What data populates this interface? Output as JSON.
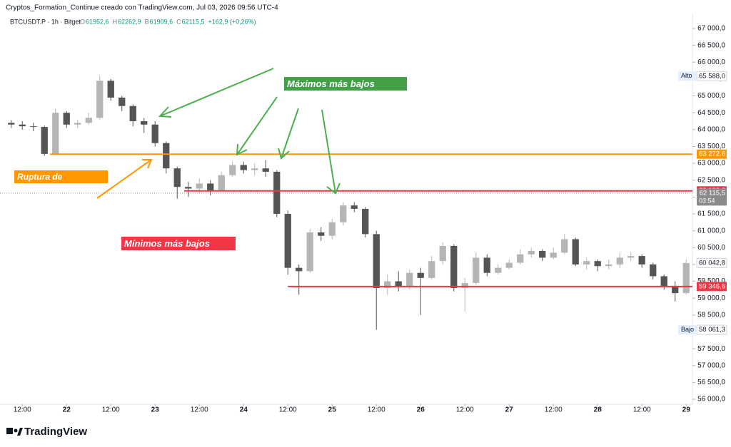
{
  "chart_data": {
    "type": "candlestick",
    "title": "Cryptos_Formation_Continue creado con TradingView.com, Jul 03, 2026 09:56 UTC-4",
    "symbol": "BTCUSDT.P · 1h · Bitget",
    "ohlc_legend": [
      {
        "key": "O",
        "value": "61952,6"
      },
      {
        "key": "H",
        "value": "62262,9"
      },
      {
        "key": "B",
        "value": "61909,6"
      },
      {
        "key": "C",
        "value": "62115,5"
      }
    ],
    "change": "+162,9 (+0,26%)",
    "brand": "TradingView",
    "x": [
      9,
      12,
      15,
      18,
      21,
      24,
      27,
      30,
      33,
      36,
      39,
      42,
      45,
      48,
      51,
      54,
      57,
      60,
      63,
      66,
      69,
      72,
      75,
      78,
      81,
      84,
      87,
      90,
      93,
      96,
      99,
      102,
      105,
      108,
      111,
      114,
      117,
      120,
      123,
      126,
      129,
      132,
      135,
      138,
      141,
      144,
      147,
      150,
      153,
      156,
      159,
      162,
      165,
      168,
      171,
      174,
      177,
      180,
      183,
      186,
      189,
      192
    ],
    "open": [
      64200,
      64150,
      64100,
      64080,
      63280,
      64500,
      64150,
      64200,
      64350,
      65450,
      64950,
      64700,
      64250,
      64150,
      63600,
      62850,
      62300,
      62250,
      62400,
      62200,
      62650,
      62950,
      62800,
      62850,
      62750,
      61500,
      59900,
      59800,
      60950,
      60850,
      61250,
      61750,
      61650,
      60900,
      59300,
      59500,
      59350,
      59750,
      59600,
      60100,
      60550,
      59300,
      59450,
      60200,
      59750,
      59900,
      60050,
      60300,
      60400,
      60200,
      60350,
      60750,
      60000,
      60100,
      59950,
      60000,
      60200,
      60250,
      60000,
      59650,
      59350,
      59150
    ],
    "high": [
      64280,
      64250,
      64200,
      64120,
      64620,
      64550,
      64300,
      64500,
      65588,
      65500,
      65000,
      64750,
      64350,
      64250,
      63650,
      62900,
      62450,
      62550,
      62500,
      62750,
      63050,
      63050,
      63000,
      63100,
      62800,
      61600,
      60000,
      61050,
      61100,
      61350,
      61850,
      61850,
      61700,
      61000,
      59700,
      59800,
      59850,
      59900,
      60250,
      60650,
      60600,
      59600,
      60350,
      60300,
      60000,
      60150,
      60450,
      60500,
      60450,
      60500,
      60900,
      60800,
      60200,
      60150,
      60150,
      60350,
      60350,
      60300,
      60050,
      59700,
      59500,
      60150
    ],
    "low": [
      64050,
      64000,
      63950,
      63220,
      63250,
      64050,
      64050,
      64150,
      64300,
      64850,
      64550,
      64100,
      63900,
      63500,
      62700,
      61950,
      62000,
      62100,
      62050,
      62150,
      62600,
      62700,
      62650,
      62600,
      61400,
      59700,
      59100,
      59750,
      60700,
      60750,
      61150,
      61550,
      60800,
      58061.3,
      59100,
      59200,
      59250,
      58500,
      59550,
      60000,
      59200,
      58600,
      59400,
      59650,
      59700,
      59850,
      60000,
      60200,
      60100,
      60150,
      60300,
      59950,
      59850,
      59800,
      59850,
      59900,
      60100,
      59900,
      59550,
      59250,
      58900,
      59100
    ],
    "close": [
      64150,
      64100,
      64080,
      63280,
      64500,
      64150,
      64200,
      64350,
      65450,
      64950,
      64700,
      64250,
      64150,
      63600,
      62850,
      62300,
      62250,
      62400,
      62200,
      62650,
      62950,
      62800,
      62850,
      62750,
      61500,
      59900,
      59800,
      60950,
      60850,
      61250,
      61750,
      61650,
      60900,
      59300,
      59500,
      59350,
      59750,
      59600,
      60100,
      60550,
      59300,
      59450,
      60200,
      59750,
      59900,
      60050,
      60300,
      60400,
      60200,
      60350,
      60750,
      60000,
      60100,
      59950,
      60000,
      60200,
      60250,
      60000,
      59650,
      59350,
      59150,
      60042.8
    ],
    "up_color": "#b5b5b5",
    "down_color": "#555555",
    "xlim": [
      7.5,
      193.7
    ],
    "xticks": [
      {
        "value": 12,
        "label": "12:00"
      },
      {
        "value": 24,
        "label": "22"
      },
      {
        "value": 36,
        "label": "12:00"
      },
      {
        "value": 48,
        "label": "23"
      },
      {
        "value": 60,
        "label": "12:00"
      },
      {
        "value": 72,
        "label": "24"
      },
      {
        "value": 84,
        "label": "12:00"
      },
      {
        "value": 96,
        "label": "25"
      },
      {
        "value": 108,
        "label": "12:00"
      },
      {
        "value": 120,
        "label": "26"
      },
      {
        "value": 132,
        "label": "12:00"
      },
      {
        "value": 144,
        "label": "27"
      },
      {
        "value": 156,
        "label": "12:00"
      },
      {
        "value": 168,
        "label": "28"
      },
      {
        "value": 180,
        "label": "12:00"
      },
      {
        "value": 192,
        "label": "29"
      }
    ],
    "ylim": [
      55895,
      67317
    ],
    "yticks": [
      {
        "value": 56000,
        "label": "56 000,0"
      },
      {
        "value": 56500,
        "label": "56 500,0"
      },
      {
        "value": 57000,
        "label": "57 000,0"
      },
      {
        "value": 57500,
        "label": "57 500,0"
      },
      {
        "value": 58000,
        "label": "58 000,0"
      },
      {
        "value": 58500,
        "label": "58 500,0"
      },
      {
        "value": 59000,
        "label": "59 000,0"
      },
      {
        "value": 59500,
        "label": "59 500,0"
      },
      {
        "value": 60000,
        "label": "60 000,0"
      },
      {
        "value": 60500,
        "label": "60 500,0"
      },
      {
        "value": 61000,
        "label": "61 000,0"
      },
      {
        "value": 61500,
        "label": "61 500,0"
      },
      {
        "value": 62000,
        "label": "62 000,0"
      },
      {
        "value": 62500,
        "label": "62 500,0"
      },
      {
        "value": 63000,
        "label": "63 000,0"
      },
      {
        "value": 63500,
        "label": "63 500,0"
      },
      {
        "value": 64000,
        "label": "64 000,0"
      },
      {
        "value": 64500,
        "label": "64 500,0"
      },
      {
        "value": 65000,
        "label": "65 000,0"
      },
      {
        "value": 65500,
        "label": "65 500,0"
      },
      {
        "value": 66000,
        "label": "66 000,0"
      },
      {
        "value": 66500,
        "label": "66 500,0"
      },
      {
        "value": 67000,
        "label": "67 000,0"
      }
    ],
    "levels": [
      {
        "value": 63272.6,
        "from": 19.5,
        "color": "#ff9800"
      },
      {
        "value": 62182.8,
        "from": 55.9,
        "color": "#f23645"
      },
      {
        "value": 59346.6,
        "from": 84,
        "color": "#f23645"
      }
    ],
    "current_price": 62115.5,
    "price_tags": [
      {
        "caption": "Alto",
        "value": 65588.0,
        "label": "65 588,0"
      },
      {
        "value": 63272.6,
        "label": "63 272,6",
        "color": "#ff9800"
      },
      {
        "value": 62182.8,
        "label": "62 182,8",
        "color": "#f23645"
      },
      {
        "value": 62115.5,
        "label": "62 115,5",
        "sub": "03:54",
        "color": "#8a8a8a"
      },
      {
        "value": 60042.8,
        "label": "60 042,8"
      },
      {
        "value": 59346.6,
        "label": "59 346,6",
        "color": "#f23645"
      },
      {
        "caption": "Bajo",
        "value": 58061.3,
        "label": "58 061,3"
      }
    ],
    "annotations": [
      {
        "text": "Máximos más bajos"
      },
      {
        "text": "Ruptura de estructura"
      },
      {
        "text": "Mínimos más bajos"
      }
    ]
  }
}
